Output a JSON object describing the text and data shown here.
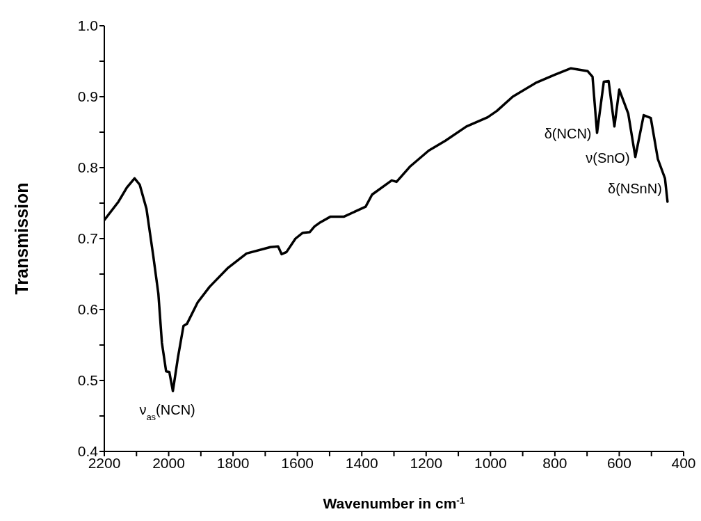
{
  "chart_data": {
    "type": "line",
    "xlabel": "Wavenumber in cm$^{-1}$",
    "ylabel": "Transmission",
    "xlim": [
      2200,
      400
    ],
    "ylim": [
      0.4,
      1.0
    ],
    "xticks": [
      2200,
      {
        "value": 2100,
        "label": null
      },
      2000,
      {
        "value": 1900,
        "label": null
      },
      1800,
      {
        "value": 1700,
        "label": null
      },
      1600,
      {
        "value": 1500,
        "label": null
      },
      1400,
      {
        "value": 1300,
        "label": null
      },
      1200,
      {
        "value": 1100,
        "label": null
      },
      1000,
      {
        "value": 900,
        "label": null
      },
      800,
      {
        "value": 700,
        "label": null
      },
      600,
      {
        "value": 500,
        "label": null
      },
      400
    ],
    "yticks": [
      0.4,
      {
        "value": 0.45,
        "label": null
      },
      0.5,
      {
        "value": 0.55,
        "label": null
      },
      0.6,
      {
        "value": 0.65,
        "label": null
      },
      0.7,
      {
        "value": 0.75,
        "label": null
      },
      0.8,
      {
        "value": 0.85,
        "label": null
      },
      0.9,
      {
        "value": 0.95,
        "label": null
      },
      {
        "value": 1.0,
        "label": "1.0"
      }
    ],
    "grid": false,
    "legend": false,
    "marker": "none",
    "line_style": "solid",
    "series": [
      {
        "color": "#000000",
        "x": [
          2200,
          2156,
          2130,
          2106,
          2090,
          2069,
          2048,
          2032,
          2021,
          2008,
          1998,
          1987,
          1971,
          1954,
          1943,
          1910,
          1873,
          1815,
          1758,
          1684,
          1660,
          1649,
          1634,
          1606,
          1584,
          1562,
          1547,
          1532,
          1497,
          1455,
          1388,
          1368,
          1307,
          1292,
          1249,
          1192,
          1140,
          1075,
          1009,
          980,
          931,
          857,
          800,
          750,
          698,
          683,
          669,
          648,
          633,
          615,
          600,
          572,
          550,
          524,
          502,
          480,
          458,
          450
        ],
        "values": [
          0.726,
          0.752,
          0.772,
          0.785,
          0.776,
          0.742,
          0.676,
          0.622,
          0.553,
          0.513,
          0.512,
          0.485,
          0.533,
          0.577,
          0.58,
          0.61,
          0.632,
          0.659,
          0.679,
          0.688,
          0.689,
          0.678,
          0.681,
          0.7,
          0.708,
          0.709,
          0.717,
          0.722,
          0.731,
          0.731,
          0.745,
          0.762,
          0.782,
          0.78,
          0.802,
          0.824,
          0.838,
          0.858,
          0.871,
          0.88,
          0.9,
          0.92,
          0.931,
          0.94,
          0.936,
          0.928,
          0.849,
          0.921,
          0.922,
          0.858,
          0.91,
          0.876,
          0.815,
          0.874,
          0.87,
          0.812,
          0.785,
          0.752
        ]
      }
    ],
    "annotations": [
      {
        "text": "ν$_{as}$(NCN)",
        "x": 1987,
        "y": 0.485
      },
      {
        "text": "δ(NCN)",
        "x": 669,
        "y": 0.849
      },
      {
        "text": "ν(SnO)",
        "x": 550,
        "y": 0.815
      },
      {
        "text": "δ(NSnN)",
        "x": 450,
        "y": 0.752
      }
    ]
  }
}
